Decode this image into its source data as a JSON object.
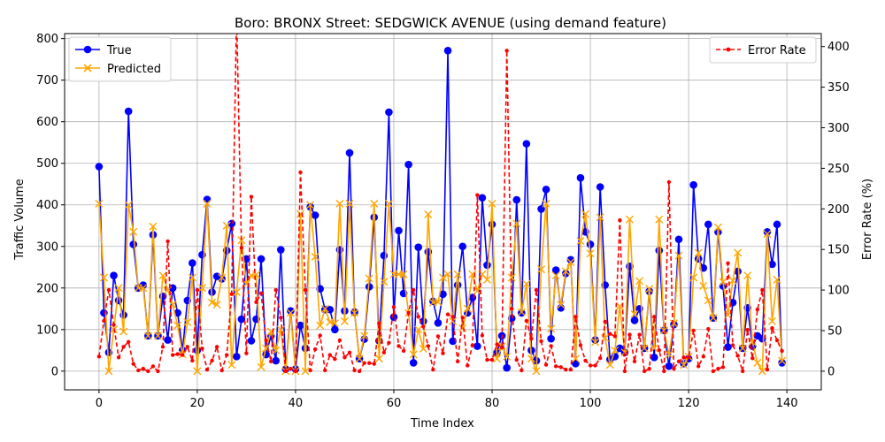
{
  "chart_data": {
    "type": "line",
    "title": "Boro: BRONX Street: SEDGWICK AVENUE (using demand feature)",
    "xlabel": "Time Index",
    "ylabel": "Traffic Volume",
    "y2label": "Error Rate (%)",
    "xlim": [
      -7,
      147
    ],
    "ylim": [
      -45,
      812
    ],
    "y2lim": [
      -23,
      416
    ],
    "x_ticks": [
      0,
      20,
      40,
      60,
      80,
      100,
      120,
      140
    ],
    "y_ticks": [
      0,
      100,
      200,
      300,
      400,
      500,
      600,
      700,
      800
    ],
    "y2_ticks": [
      0,
      50,
      100,
      150,
      200,
      250,
      300,
      350,
      400
    ],
    "grid": true,
    "legend_left": "upper-left",
    "legend_right": "upper-right",
    "series": [
      {
        "name": "True",
        "axis": "left",
        "color": "#0000ff",
        "marker": "circle",
        "values": [
          492,
          140,
          45,
          230,
          170,
          135,
          625,
          305,
          200,
          207,
          85,
          328,
          85,
          180,
          75,
          200,
          140,
          50,
          170,
          260,
          50,
          280,
          413,
          190,
          228,
          222,
          290,
          355,
          35,
          125,
          270,
          73,
          125,
          270,
          40,
          85,
          25,
          292,
          5,
          145,
          5,
          110,
          55,
          395,
          375,
          198,
          148,
          148,
          100,
          292,
          145,
          525,
          142,
          30,
          77,
          203,
          370,
          73,
          278,
          623,
          130,
          338,
          187,
          497,
          20,
          298,
          120,
          287,
          168,
          116,
          185,
          771,
          72,
          207,
          300,
          140,
          177,
          60,
          417,
          255,
          353,
          45,
          85,
          8,
          127,
          412,
          140,
          547,
          50,
          25,
          390,
          437,
          78,
          243,
          152,
          235,
          268,
          18,
          465,
          335,
          305,
          75,
          443,
          207,
          28,
          35,
          55,
          45,
          252,
          122,
          150,
          55,
          192,
          33,
          290,
          98,
          12,
          112,
          317,
          18,
          30,
          448,
          270,
          248,
          353,
          128,
          335,
          205,
          58,
          165,
          240,
          55,
          152,
          60,
          85,
          78,
          335,
          257,
          353,
          20
        ]
      },
      {
        "name": "Predicted",
        "axis": "left",
        "color": "#ffa500",
        "marker": "x",
        "values": [
          403,
          225,
          0,
          100,
          200,
          95,
          400,
          335,
          200,
          200,
          85,
          348,
          85,
          230,
          195,
          160,
          110,
          40,
          118,
          225,
          0,
          200,
          403,
          165,
          160,
          225,
          350,
          15,
          190,
          315,
          210,
          230,
          232,
          10,
          55,
          95,
          50,
          100,
          0,
          140,
          0,
          378,
          0,
          400,
          275,
          110,
          150,
          118,
          115,
          403,
          120,
          403,
          140,
          30,
          85,
          223,
          403,
          30,
          215,
          403,
          233,
          233,
          233,
          140,
          40,
          100,
          54,
          377,
          165,
          166,
          225,
          233,
          120,
          233,
          103,
          150,
          233,
          193,
          233,
          220,
          403,
          30,
          60,
          35,
          225,
          355,
          142,
          210,
          30,
          0,
          245,
          403,
          102,
          230,
          160,
          240,
          262,
          30,
          313,
          378,
          283,
          70,
          370,
          80,
          15,
          50,
          156,
          45,
          365,
          137,
          217,
          55,
          198,
          55,
          365,
          98,
          40,
          115,
          278,
          15,
          35,
          225,
          285,
          205,
          170,
          128,
          346,
          215,
          135,
          218,
          285,
          55,
          230,
          70,
          20,
          0,
          330,
          120,
          220,
          25
        ]
      },
      {
        "name": "Error Rate",
        "axis": "right",
        "color": "#ff0000",
        "marker": "dot",
        "linestyle": "dashed",
        "values": [
          18,
          62,
          100,
          57,
          17,
          30,
          36,
          9,
          1,
          3,
          0,
          6,
          0,
          30,
          160,
          20,
          21,
          20,
          30,
          13,
          100,
          28,
          2,
          13,
          30,
          1,
          20,
          95,
          440,
          152,
          22,
          215,
          85,
          96,
          38,
          12,
          100,
          66,
          0,
          3,
          0,
          245,
          100,
          1,
          27,
          44,
          1,
          20,
          15,
          38,
          17,
          23,
          1,
          0,
          10,
          10,
          9,
          59,
          23,
          35,
          79,
          31,
          25,
          72,
          100,
          67,
          55,
          31,
          2,
          43,
          22,
          70,
          67,
          12,
          66,
          7,
          32,
          217,
          44,
          14,
          14,
          33,
          29,
          395,
          77,
          14,
          1,
          62,
          40,
          100,
          37,
          8,
          31,
          6,
          5,
          2,
          2,
          67,
          32,
          13,
          7,
          7,
          16,
          61,
          46,
          43,
          186,
          0,
          45,
          12,
          45,
          0,
          3,
          67,
          26,
          0,
          233,
          3,
          12,
          17,
          17,
          50,
          6,
          18,
          52,
          0,
          3,
          5,
          133,
          32,
          19,
          0,
          51,
          16,
          76,
          100,
          2,
          53,
          38,
          25
        ]
      }
    ]
  }
}
